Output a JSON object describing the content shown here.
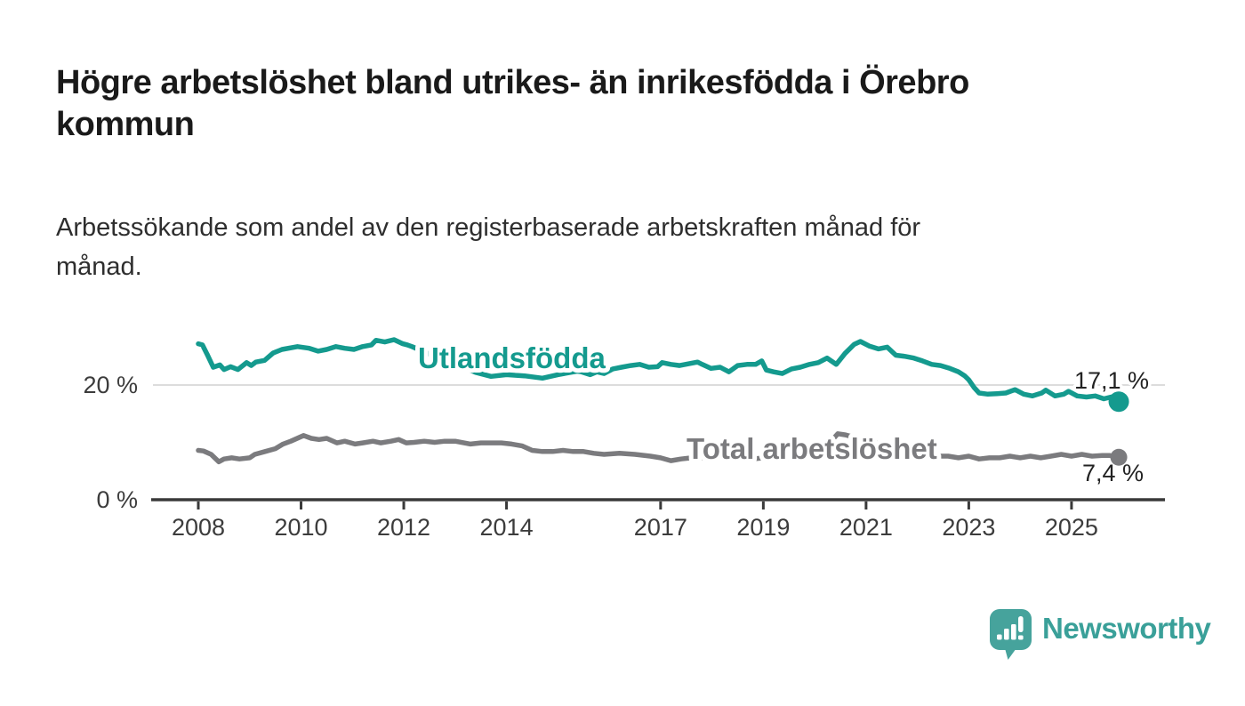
{
  "header": {
    "title_line1": "Högre arbetslöshet bland utrikes- än inrikesfödda i Örebro",
    "title_line2": "kommun",
    "subtitle_line1": "Arbetssökande som andel av den registerbaserade arbetskraften månad för",
    "subtitle_line2": "månad."
  },
  "footer": {
    "brand": "Newsworthy"
  },
  "colors": {
    "foreign_born_line": "#149a8e",
    "total_line": "#7b7b7e",
    "axis": "#3a3a3a",
    "axis_text": "#3c3c3c",
    "gridline": "#dcdcdc",
    "annotation_text": "#222222",
    "logo_teal": "#46a39c",
    "logo_text_teal": "#3aa099",
    "background": "#ffffff"
  },
  "chart_data": {
    "type": "line",
    "title": "Högre arbetslöshet bland utrikes- än inrikesfödda i Örebro kommun",
    "subtitle": "Arbetssökande som andel av den registerbaserade arbetskraften månad för månad.",
    "unit": "%",
    "xlim": [
      2007.1,
      2026.8
    ],
    "ylim": [
      0,
      29
    ],
    "grid": "y-at-20-only",
    "legend_position": "inline-line-labels",
    "yticks": [
      {
        "value": 0,
        "label": "0 %"
      },
      {
        "value": 20,
        "label": "20 %"
      }
    ],
    "xticks": [
      {
        "value": 2008,
        "label": "2008"
      },
      {
        "value": 2010,
        "label": "2010"
      },
      {
        "value": 2012,
        "label": "2012"
      },
      {
        "value": 2014,
        "label": "2014"
      },
      {
        "value": 2017,
        "label": "2017"
      },
      {
        "value": 2019,
        "label": "2019"
      },
      {
        "value": 2021,
        "label": "2021"
      },
      {
        "value": 2023,
        "label": "2023"
      },
      {
        "value": 2025,
        "label": "2025"
      }
    ],
    "series": [
      {
        "name": "Utlandsfödda",
        "color": "#149a8e",
        "end_value": 17.1,
        "end_label": "17,1 %",
        "points": [
          [
            2008.0,
            27.2
          ],
          [
            2008.08,
            27.0
          ],
          [
            2008.17,
            25.4
          ],
          [
            2008.29,
            23.1
          ],
          [
            2008.42,
            23.5
          ],
          [
            2008.5,
            22.7
          ],
          [
            2008.63,
            23.2
          ],
          [
            2008.77,
            22.7
          ],
          [
            2008.94,
            23.9
          ],
          [
            2009.03,
            23.4
          ],
          [
            2009.12,
            24.0
          ],
          [
            2009.29,
            24.3
          ],
          [
            2009.46,
            25.6
          ],
          [
            2009.63,
            26.2
          ],
          [
            2009.93,
            26.7
          ],
          [
            2010.16,
            26.4
          ],
          [
            2010.33,
            25.9
          ],
          [
            2010.5,
            26.2
          ],
          [
            2010.68,
            26.7
          ],
          [
            2010.85,
            26.4
          ],
          [
            2011.03,
            26.2
          ],
          [
            2011.2,
            26.7
          ],
          [
            2011.37,
            27.0
          ],
          [
            2011.46,
            27.8
          ],
          [
            2011.63,
            27.5
          ],
          [
            2011.81,
            27.9
          ],
          [
            2011.98,
            27.2
          ],
          [
            2012.07,
            27.0
          ],
          [
            2012.16,
            26.7
          ],
          [
            2012.5,
            25.4
          ],
          [
            2012.8,
            24.3
          ],
          [
            2013.1,
            23.3
          ],
          [
            2013.4,
            22.2
          ],
          [
            2013.7,
            21.5
          ],
          [
            2014.0,
            21.8
          ],
          [
            2014.35,
            21.6
          ],
          [
            2014.7,
            21.2
          ],
          [
            2015.0,
            21.8
          ],
          [
            2015.37,
            22.4
          ],
          [
            2015.46,
            22.3
          ],
          [
            2015.63,
            21.8
          ],
          [
            2015.76,
            22.3
          ],
          [
            2015.9,
            22.0
          ],
          [
            2016.07,
            22.8
          ],
          [
            2016.24,
            23.1
          ],
          [
            2016.42,
            23.4
          ],
          [
            2016.59,
            23.6
          ],
          [
            2016.77,
            23.1
          ],
          [
            2016.94,
            23.2
          ],
          [
            2017.03,
            23.9
          ],
          [
            2017.2,
            23.6
          ],
          [
            2017.37,
            23.4
          ],
          [
            2017.55,
            23.7
          ],
          [
            2017.72,
            24.0
          ],
          [
            2017.81,
            23.6
          ],
          [
            2017.98,
            22.9
          ],
          [
            2018.16,
            23.1
          ],
          [
            2018.33,
            22.3
          ],
          [
            2018.5,
            23.4
          ],
          [
            2018.68,
            23.6
          ],
          [
            2018.85,
            23.6
          ],
          [
            2018.97,
            24.2
          ],
          [
            2019.06,
            22.6
          ],
          [
            2019.2,
            22.3
          ],
          [
            2019.37,
            22.0
          ],
          [
            2019.55,
            22.8
          ],
          [
            2019.72,
            23.1
          ],
          [
            2019.9,
            23.6
          ],
          [
            2020.07,
            23.9
          ],
          [
            2020.24,
            24.7
          ],
          [
            2020.42,
            23.6
          ],
          [
            2020.59,
            25.5
          ],
          [
            2020.77,
            27.1
          ],
          [
            2020.89,
            27.6
          ],
          [
            2021.06,
            26.8
          ],
          [
            2021.24,
            26.3
          ],
          [
            2021.41,
            26.6
          ],
          [
            2021.58,
            25.2
          ],
          [
            2021.76,
            25.0
          ],
          [
            2021.93,
            24.7
          ],
          [
            2022.1,
            24.2
          ],
          [
            2022.28,
            23.6
          ],
          [
            2022.45,
            23.4
          ],
          [
            2022.63,
            22.9
          ],
          [
            2022.8,
            22.3
          ],
          [
            2022.92,
            21.6
          ],
          [
            2023.0,
            20.9
          ],
          [
            2023.1,
            19.6
          ],
          [
            2023.2,
            18.6
          ],
          [
            2023.37,
            18.4
          ],
          [
            2023.55,
            18.5
          ],
          [
            2023.72,
            18.6
          ],
          [
            2023.9,
            19.2
          ],
          [
            2024.07,
            18.4
          ],
          [
            2024.24,
            18.1
          ],
          [
            2024.42,
            18.6
          ],
          [
            2024.5,
            19.1
          ],
          [
            2024.68,
            18.1
          ],
          [
            2024.85,
            18.4
          ],
          [
            2024.94,
            18.9
          ],
          [
            2025.11,
            18.1
          ],
          [
            2025.29,
            17.9
          ],
          [
            2025.46,
            18.1
          ],
          [
            2025.63,
            17.6
          ],
          [
            2025.77,
            17.9
          ],
          [
            2025.92,
            17.1
          ]
        ]
      },
      {
        "name": "Total arbetslöshet",
        "color": "#7b7b7e",
        "end_value": 7.4,
        "end_label": "7,4 %",
        "points": [
          [
            2008.0,
            8.6
          ],
          [
            2008.1,
            8.5
          ],
          [
            2008.25,
            7.9
          ],
          [
            2008.4,
            6.6
          ],
          [
            2008.5,
            7.1
          ],
          [
            2008.65,
            7.3
          ],
          [
            2008.8,
            7.1
          ],
          [
            2009.0,
            7.3
          ],
          [
            2009.1,
            7.9
          ],
          [
            2009.3,
            8.4
          ],
          [
            2009.5,
            8.9
          ],
          [
            2009.65,
            9.7
          ],
          [
            2009.8,
            10.2
          ],
          [
            2010.05,
            11.2
          ],
          [
            2010.2,
            10.7
          ],
          [
            2010.35,
            10.5
          ],
          [
            2010.5,
            10.7
          ],
          [
            2010.7,
            9.9
          ],
          [
            2010.85,
            10.2
          ],
          [
            2011.05,
            9.7
          ],
          [
            2011.2,
            9.9
          ],
          [
            2011.4,
            10.2
          ],
          [
            2011.55,
            9.9
          ],
          [
            2011.75,
            10.2
          ],
          [
            2011.9,
            10.5
          ],
          [
            2012.05,
            9.9
          ],
          [
            2012.2,
            10.0
          ],
          [
            2012.4,
            10.2
          ],
          [
            2012.6,
            10.0
          ],
          [
            2012.8,
            10.2
          ],
          [
            2013.0,
            10.2
          ],
          [
            2013.3,
            9.7
          ],
          [
            2013.5,
            9.9
          ],
          [
            2013.9,
            9.9
          ],
          [
            2014.1,
            9.7
          ],
          [
            2014.3,
            9.4
          ],
          [
            2014.5,
            8.6
          ],
          [
            2014.7,
            8.4
          ],
          [
            2014.9,
            8.4
          ],
          [
            2015.1,
            8.6
          ],
          [
            2015.3,
            8.4
          ],
          [
            2015.5,
            8.4
          ],
          [
            2015.7,
            8.1
          ],
          [
            2015.9,
            7.9
          ],
          [
            2016.2,
            8.1
          ],
          [
            2016.5,
            7.9
          ],
          [
            2016.8,
            7.6
          ],
          [
            2017.0,
            7.3
          ],
          [
            2017.2,
            6.8
          ],
          [
            2017.4,
            7.1
          ],
          [
            2017.6,
            7.3
          ],
          [
            2018.0,
            7.3
          ],
          [
            2018.2,
            7.6
          ],
          [
            2018.4,
            7.3
          ],
          [
            2018.6,
            7.2
          ],
          [
            2018.8,
            7.1
          ],
          [
            2019.0,
            7.3
          ],
          [
            2019.3,
            7.1
          ],
          [
            2019.6,
            7.2
          ],
          [
            2019.9,
            7.4
          ],
          [
            2020.1,
            7.9
          ],
          [
            2020.3,
            10.0
          ],
          [
            2020.45,
            11.5
          ],
          [
            2020.6,
            11.3
          ],
          [
            2020.8,
            10.8
          ],
          [
            2021.0,
            10.4
          ],
          [
            2021.3,
            9.6
          ],
          [
            2021.6,
            8.9
          ],
          [
            2021.9,
            8.3
          ],
          [
            2022.1,
            8.0
          ],
          [
            2022.3,
            7.9
          ],
          [
            2022.45,
            7.6
          ],
          [
            2022.6,
            7.6
          ],
          [
            2022.8,
            7.3
          ],
          [
            2023.0,
            7.6
          ],
          [
            2023.2,
            7.1
          ],
          [
            2023.4,
            7.3
          ],
          [
            2023.6,
            7.3
          ],
          [
            2023.8,
            7.6
          ],
          [
            2024.0,
            7.3
          ],
          [
            2024.2,
            7.6
          ],
          [
            2024.4,
            7.3
          ],
          [
            2024.6,
            7.6
          ],
          [
            2024.8,
            7.9
          ],
          [
            2025.0,
            7.6
          ],
          [
            2025.2,
            7.9
          ],
          [
            2025.4,
            7.6
          ],
          [
            2025.6,
            7.7
          ],
          [
            2025.75,
            7.7
          ],
          [
            2025.92,
            7.4
          ]
        ]
      }
    ]
  }
}
